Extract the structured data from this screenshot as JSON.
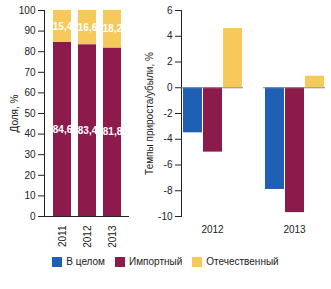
{
  "chart_data": [
    {
      "type": "bar",
      "stacked": true,
      "data_labels": true,
      "ylabel": "Доля, %",
      "categories": [
        "2011",
        "2012",
        "2013"
      ],
      "series": [
        {
          "name": "Импортный",
          "color": "#8c1b4b",
          "values": [
            84.6,
            83.4,
            81.8
          ],
          "value_labels": [
            "84,6",
            "83,4",
            "81,8"
          ]
        },
        {
          "name": "Отечественный",
          "color": "#f7c95a",
          "values": [
            15.4,
            16.6,
            18.2
          ],
          "value_labels": [
            "15,4",
            "16,6",
            "18,2"
          ]
        }
      ],
      "ylim": [
        0,
        100
      ],
      "yticks": [
        0,
        10,
        20,
        30,
        40,
        50,
        60,
        70,
        80,
        90,
        100
      ]
    },
    {
      "type": "bar",
      "legend": "bottom",
      "ylabel": "Темпы прироста/убыли, %",
      "categories": [
        "2012",
        "2013"
      ],
      "series": [
        {
          "name": "В целом",
          "color": "#1f5fb4",
          "values": [
            -3.5,
            -7.9
          ]
        },
        {
          "name": "Импортный",
          "color": "#8c1b4b",
          "values": [
            -5.0,
            -9.7
          ]
        },
        {
          "name": "Отечественный",
          "color": "#f7c95a",
          "values": [
            4.6,
            0.9
          ]
        }
      ],
      "ylim": [
        -10,
        6
      ],
      "yticks": [
        -10,
        -8,
        -6,
        -4,
        -2,
        0,
        2,
        4,
        6
      ]
    }
  ]
}
